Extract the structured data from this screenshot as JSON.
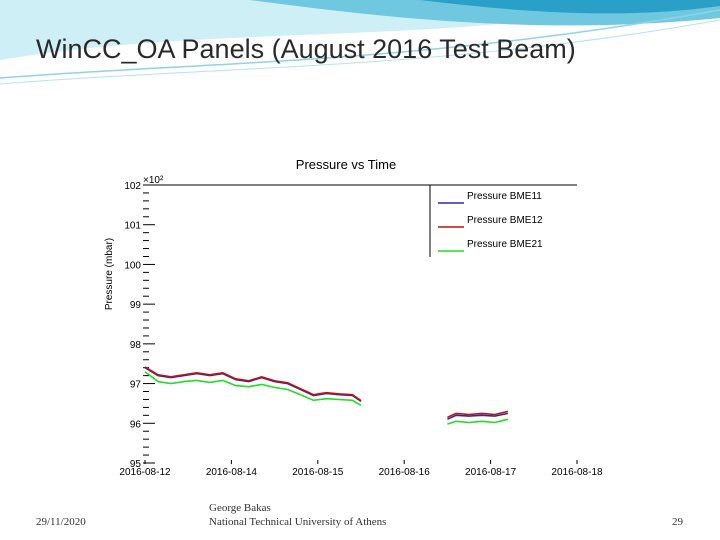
{
  "slide": {
    "title": "WinCC_OA Panels (August 2016 Test Beam)",
    "footer_date": "29/11/2020",
    "footer_author": "George Bakas",
    "footer_affiliation": "National Technical University of Athens",
    "page_number": "29"
  },
  "colors": {
    "banner_light": "#cfeff7",
    "banner_mid": "#6fc8e0",
    "banner_dark": "#2aa0c8"
  },
  "chart_data": {
    "type": "line",
    "title": "Pressure vs Time",
    "ylabel": "Pressure (mbar)",
    "y_multiplier": "×10²",
    "ylim": [
      95,
      102
    ],
    "yticks": [
      "95",
      "96",
      "97",
      "98",
      "99",
      "100",
      "101",
      "102"
    ],
    "xticks": [
      "2016-08-12",
      "2016-08-14",
      "2016-08-15",
      "2016-08-16",
      "2016-08-17",
      "2016-08-18"
    ],
    "legend_position": "top-right",
    "series": [
      {
        "name": "Pressure BME11",
        "color": "#2a2aa0",
        "segments": [
          [
            [
              0.0,
              97.4
            ],
            [
              0.3,
              97.2
            ],
            [
              0.6,
              97.15
            ],
            [
              0.9,
              97.2
            ],
            [
              1.2,
              97.25
            ],
            [
              1.5,
              97.2
            ],
            [
              1.8,
              97.25
            ],
            [
              2.1,
              97.1
            ],
            [
              2.4,
              97.05
            ],
            [
              2.7,
              97.15
            ],
            [
              3.0,
              97.05
            ],
            [
              3.3,
              97.0
            ],
            [
              3.6,
              96.85
            ],
            [
              3.9,
              96.7
            ],
            [
              4.2,
              96.75
            ],
            [
              4.5,
              96.72
            ],
            [
              4.8,
              96.7
            ],
            [
              5.0,
              96.55
            ]
          ],
          [
            [
              7.0,
              96.1
            ],
            [
              7.2,
              96.2
            ],
            [
              7.5,
              96.18
            ],
            [
              7.8,
              96.2
            ],
            [
              8.1,
              96.18
            ],
            [
              8.4,
              96.25
            ]
          ]
        ]
      },
      {
        "name": "Pressure BME12",
        "color": "#c01010",
        "segments": [
          [
            [
              0.0,
              97.42
            ],
            [
              0.3,
              97.22
            ],
            [
              0.6,
              97.17
            ],
            [
              0.9,
              97.22
            ],
            [
              1.2,
              97.27
            ],
            [
              1.5,
              97.22
            ],
            [
              1.8,
              97.27
            ],
            [
              2.1,
              97.12
            ],
            [
              2.4,
              97.07
            ],
            [
              2.7,
              97.17
            ],
            [
              3.0,
              97.07
            ],
            [
              3.3,
              97.02
            ],
            [
              3.6,
              96.87
            ],
            [
              3.9,
              96.72
            ],
            [
              4.2,
              96.77
            ],
            [
              4.5,
              96.74
            ],
            [
              4.8,
              96.72
            ],
            [
              5.0,
              96.57
            ]
          ],
          [
            [
              7.0,
              96.15
            ],
            [
              7.2,
              96.25
            ],
            [
              7.5,
              96.22
            ],
            [
              7.8,
              96.25
            ],
            [
              8.1,
              96.22
            ],
            [
              8.4,
              96.3
            ]
          ]
        ]
      },
      {
        "name": "Pressure BME21",
        "color": "#22dd22",
        "segments": [
          [
            [
              0.0,
              97.3
            ],
            [
              0.3,
              97.05
            ],
            [
              0.6,
              97.0
            ],
            [
              0.9,
              97.05
            ],
            [
              1.2,
              97.08
            ],
            [
              1.5,
              97.03
            ],
            [
              1.8,
              97.08
            ],
            [
              2.1,
              96.95
            ],
            [
              2.4,
              96.92
            ],
            [
              2.7,
              96.98
            ],
            [
              3.0,
              96.9
            ],
            [
              3.3,
              96.85
            ],
            [
              3.6,
              96.72
            ],
            [
              3.9,
              96.58
            ],
            [
              4.2,
              96.62
            ],
            [
              4.5,
              96.6
            ],
            [
              4.8,
              96.58
            ],
            [
              5.0,
              96.45
            ]
          ],
          [
            [
              7.0,
              95.98
            ],
            [
              7.2,
              96.05
            ],
            [
              7.5,
              96.02
            ],
            [
              7.8,
              96.05
            ],
            [
              8.1,
              96.02
            ],
            [
              8.4,
              96.1
            ]
          ]
        ]
      }
    ]
  }
}
